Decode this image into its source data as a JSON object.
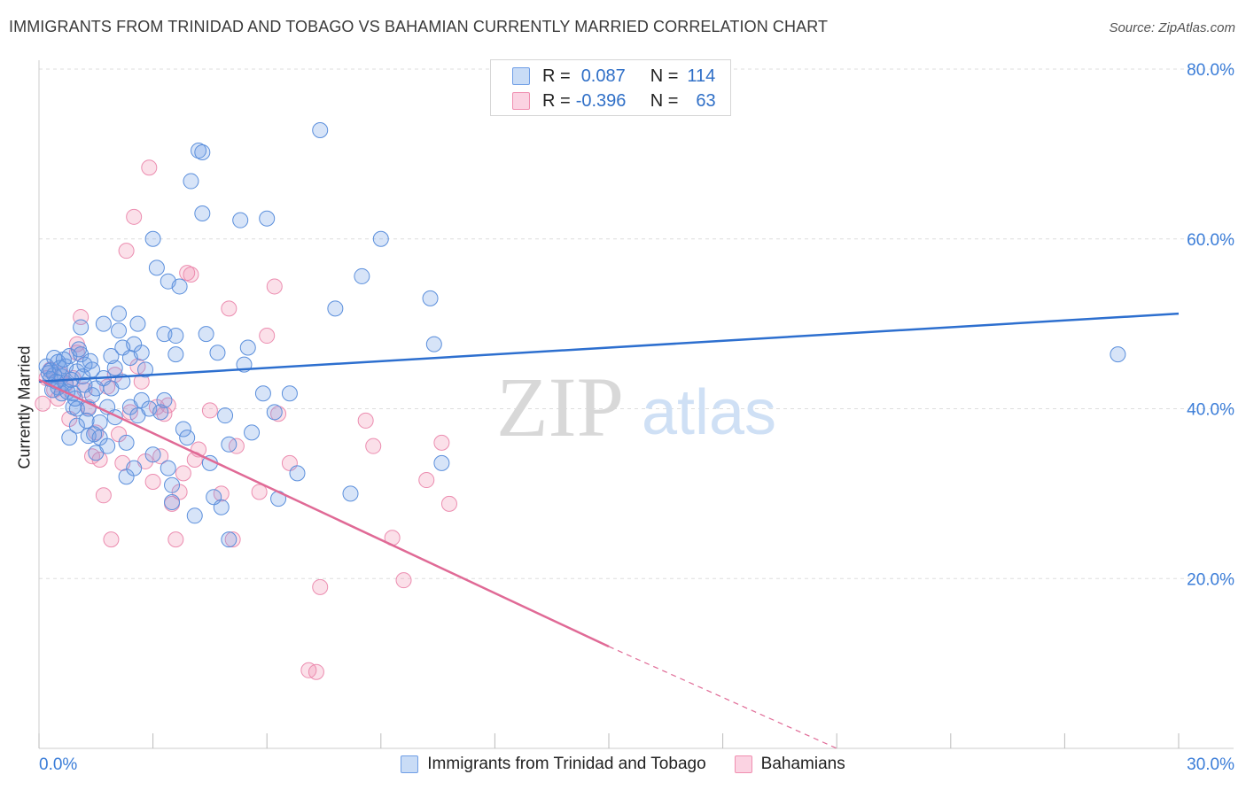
{
  "header": {
    "title": "IMMIGRANTS FROM TRINIDAD AND TOBAGO VS BAHAMIAN CURRENTLY MARRIED CORRELATION CHART",
    "source": "Source: ZipAtlas.com"
  },
  "legend": {
    "rows": [
      {
        "r_label": "R =",
        "r_value": "0.087",
        "n_label": "N =",
        "n_value": "114",
        "color": "#6f9ee6"
      },
      {
        "r_label": "R =",
        "r_value": "-0.396",
        "n_label": "N =",
        "n_value": "63",
        "color": "#f08fb0"
      }
    ]
  },
  "bottom_legend": [
    {
      "label": "Immigrants from Trinidad and Tobago",
      "color": "#6f9ee6"
    },
    {
      "label": "Bahamians",
      "color": "#f08fb0"
    }
  ],
  "watermark": {
    "zip": "ZIP",
    "atlas": "atlas"
  },
  "colors": {
    "blue": "#3b7dd8",
    "blue_line": "#2d6fcf",
    "pink": "#ec8db0",
    "pink_line": "#e06a96",
    "tick_text": "#3b7dd8",
    "grid": "#dddddd"
  },
  "chart_data": {
    "type": "scatter",
    "title": "IMMIGRANTS FROM TRINIDAD AND TOBAGO VS BAHAMIAN CURRENTLY MARRIED CORRELATION CHART",
    "xlabel": "",
    "ylabel": "Currently Married",
    "xlim": [
      0,
      30
    ],
    "ylim": [
      0,
      80
    ],
    "x_tick_labels": [
      "0.0%",
      "30.0%"
    ],
    "y_tick_values": [
      20,
      40,
      60,
      80
    ],
    "y_tick_labels": [
      "20.0%",
      "40.0%",
      "60.0%",
      "80.0%"
    ],
    "grid": true,
    "legend_position": "top-center",
    "series": [
      {
        "name": "Immigrants from Trinidad and Tobago",
        "R": 0.087,
        "N": 114,
        "trend": {
          "x0": 0,
          "y0": 43.2,
          "x1": 30,
          "y1": 51.2,
          "dashed_from": null
        },
        "points": [
          [
            0.2,
            45
          ],
          [
            0.3,
            44.5
          ],
          [
            0.3,
            43.5
          ],
          [
            0.4,
            46
          ],
          [
            0.4,
            44
          ],
          [
            0.5,
            45.5
          ],
          [
            0.5,
            42.5
          ],
          [
            0.6,
            43.8
          ],
          [
            0.6,
            41.8
          ],
          [
            0.7,
            45
          ],
          [
            0.7,
            43
          ],
          [
            0.8,
            46.2
          ],
          [
            0.8,
            36.6
          ],
          [
            0.9,
            40.2
          ],
          [
            0.9,
            41.8
          ],
          [
            1.0,
            44.4
          ],
          [
            1.0,
            40
          ],
          [
            1.0,
            38
          ],
          [
            1.1,
            49.6
          ],
          [
            1.1,
            46.4
          ],
          [
            1.2,
            45.2
          ],
          [
            1.2,
            42.8
          ],
          [
            1.3,
            40
          ],
          [
            1.3,
            36.8
          ],
          [
            1.4,
            44.6
          ],
          [
            1.4,
            41.6
          ],
          [
            1.5,
            34.8
          ],
          [
            1.5,
            42.4
          ],
          [
            1.6,
            38.4
          ],
          [
            1.6,
            36.6
          ],
          [
            1.7,
            50
          ],
          [
            1.7,
            43.6
          ],
          [
            1.8,
            40.2
          ],
          [
            1.8,
            35.6
          ],
          [
            1.9,
            46.2
          ],
          [
            1.9,
            42.4
          ],
          [
            2.0,
            44.8
          ],
          [
            2.0,
            39
          ],
          [
            2.1,
            49.2
          ],
          [
            2.1,
            51.2
          ],
          [
            2.2,
            47.2
          ],
          [
            2.2,
            43.2
          ],
          [
            2.3,
            36
          ],
          [
            2.3,
            32
          ],
          [
            2.4,
            46
          ],
          [
            2.4,
            40.2
          ],
          [
            2.5,
            47.6
          ],
          [
            2.5,
            33
          ],
          [
            2.6,
            50
          ],
          [
            2.6,
            39.2
          ],
          [
            2.7,
            41
          ],
          [
            2.7,
            46.6
          ],
          [
            2.8,
            44.6
          ],
          [
            2.9,
            40
          ],
          [
            3.0,
            60
          ],
          [
            3.0,
            34.6
          ],
          [
            3.1,
            56.6
          ],
          [
            3.2,
            39.6
          ],
          [
            3.3,
            48.8
          ],
          [
            3.3,
            41
          ],
          [
            3.4,
            55
          ],
          [
            3.4,
            33
          ],
          [
            3.5,
            31
          ],
          [
            3.5,
            29
          ],
          [
            3.6,
            48.6
          ],
          [
            3.6,
            46.4
          ],
          [
            3.7,
            54.4
          ],
          [
            3.8,
            37.6
          ],
          [
            3.9,
            36.6
          ],
          [
            4.0,
            66.8
          ],
          [
            4.1,
            27.4
          ],
          [
            4.2,
            70.4
          ],
          [
            4.3,
            70.2
          ],
          [
            4.3,
            63
          ],
          [
            4.4,
            48.8
          ],
          [
            4.5,
            33.6
          ],
          [
            4.6,
            29.6
          ],
          [
            4.7,
            46.6
          ],
          [
            4.8,
            28.4
          ],
          [
            4.9,
            39.2
          ],
          [
            5.0,
            35.8
          ],
          [
            5.0,
            24.6
          ],
          [
            5.3,
            62.2
          ],
          [
            5.4,
            45.2
          ],
          [
            5.5,
            47.2
          ],
          [
            5.6,
            37.2
          ],
          [
            5.9,
            41.8
          ],
          [
            6.0,
            62.4
          ],
          [
            6.2,
            39.6
          ],
          [
            6.3,
            29.4
          ],
          [
            6.6,
            41.8
          ],
          [
            6.8,
            32.4
          ],
          [
            7.4,
            72.8
          ],
          [
            7.8,
            51.8
          ],
          [
            8.2,
            30
          ],
          [
            8.5,
            55.6
          ],
          [
            9.0,
            60
          ],
          [
            10.3,
            53
          ],
          [
            10.4,
            47.6
          ],
          [
            10.6,
            33.6
          ],
          [
            28.4,
            46.4
          ],
          [
            0.25,
            44.2
          ],
          [
            0.35,
            42.2
          ],
          [
            0.45,
            43.2
          ],
          [
            0.55,
            44.8
          ],
          [
            0.65,
            45.8
          ],
          [
            0.75,
            42
          ],
          [
            0.85,
            43.4
          ],
          [
            0.95,
            41.2
          ],
          [
            1.05,
            47
          ],
          [
            1.15,
            43.8
          ],
          [
            1.25,
            38.6
          ],
          [
            1.35,
            45.6
          ],
          [
            1.45,
            37
          ]
        ]
      },
      {
        "name": "Bahamians",
        "R": -0.396,
        "N": 63,
        "trend": {
          "x0": 0,
          "y0": 43.4,
          "x1": 15,
          "y1": 12,
          "dashed_to": {
            "x": 21,
            "y": 0
          }
        },
        "points": [
          [
            0.1,
            40.6
          ],
          [
            0.2,
            43.6
          ],
          [
            0.3,
            44.6
          ],
          [
            0.4,
            42.2
          ],
          [
            0.5,
            41.2
          ],
          [
            0.6,
            44
          ],
          [
            0.7,
            42.8
          ],
          [
            0.8,
            38.8
          ],
          [
            0.9,
            43.6
          ],
          [
            1.0,
            46.6
          ],
          [
            1.0,
            47.6
          ],
          [
            1.1,
            50.8
          ],
          [
            1.2,
            42.2
          ],
          [
            1.3,
            40.2
          ],
          [
            1.4,
            34.4
          ],
          [
            1.5,
            37.2
          ],
          [
            1.6,
            34
          ],
          [
            1.7,
            29.8
          ],
          [
            1.8,
            42.6
          ],
          [
            1.9,
            24.6
          ],
          [
            2.0,
            44
          ],
          [
            2.1,
            37
          ],
          [
            2.2,
            33.6
          ],
          [
            2.3,
            58.6
          ],
          [
            2.4,
            39.6
          ],
          [
            2.5,
            62.6
          ],
          [
            2.6,
            45
          ],
          [
            2.7,
            43.2
          ],
          [
            2.8,
            33.8
          ],
          [
            2.9,
            68.4
          ],
          [
            3.0,
            31.4
          ],
          [
            3.1,
            40.2
          ],
          [
            3.2,
            34.4
          ],
          [
            3.3,
            39.4
          ],
          [
            3.4,
            40.4
          ],
          [
            3.5,
            28.8
          ],
          [
            3.6,
            24.6
          ],
          [
            3.7,
            30.2
          ],
          [
            3.8,
            32.4
          ],
          [
            3.9,
            56
          ],
          [
            4.0,
            55.8
          ],
          [
            4.1,
            34
          ],
          [
            4.2,
            35.2
          ],
          [
            4.5,
            39.8
          ],
          [
            4.8,
            30
          ],
          [
            5.0,
            51.8
          ],
          [
            5.1,
            24.6
          ],
          [
            5.2,
            35.6
          ],
          [
            5.8,
            30.2
          ],
          [
            6.0,
            48.6
          ],
          [
            6.2,
            54.4
          ],
          [
            6.3,
            39.4
          ],
          [
            6.6,
            33.6
          ],
          [
            7.1,
            9.2
          ],
          [
            7.3,
            9
          ],
          [
            7.4,
            19
          ],
          [
            8.6,
            38.6
          ],
          [
            8.8,
            35.6
          ],
          [
            9.3,
            24.8
          ],
          [
            9.6,
            19.8
          ],
          [
            10.2,
            31.6
          ],
          [
            10.6,
            36
          ],
          [
            10.8,
            28.8
          ]
        ]
      }
    ]
  }
}
